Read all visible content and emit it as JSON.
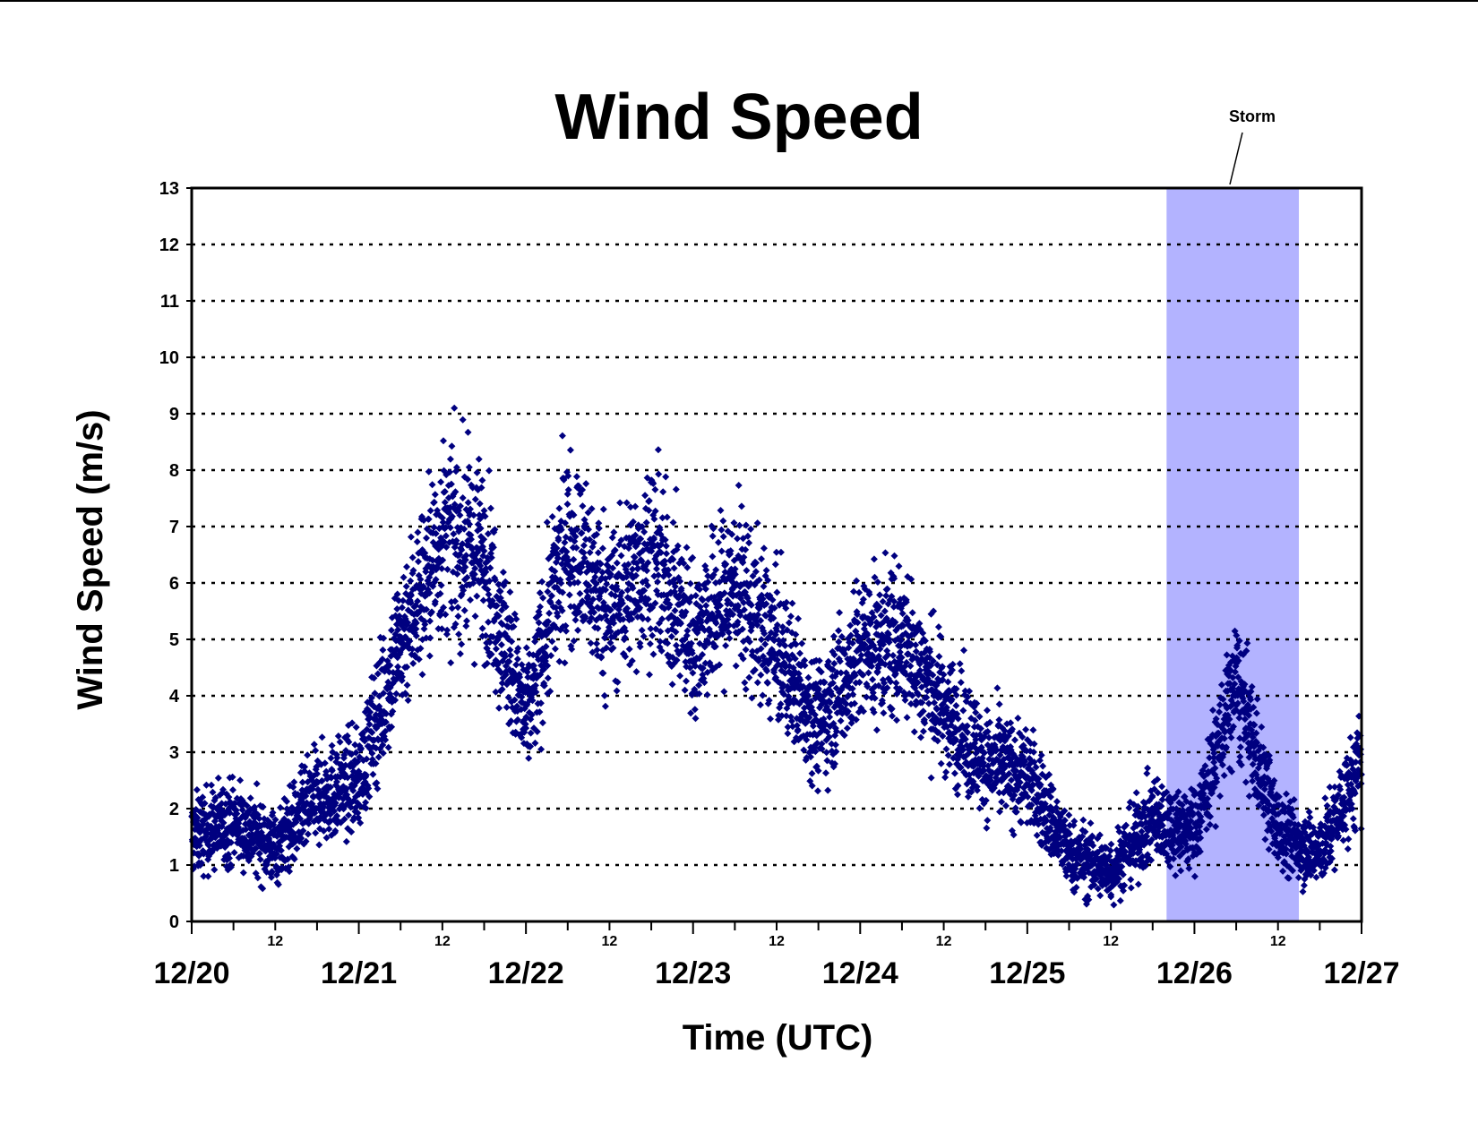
{
  "chart_data": {
    "type": "scatter",
    "title": "Wind Speed",
    "xlabel": "Time (UTC)",
    "ylabel": "Wind Speed (m/s)",
    "x_axis": "time (days)",
    "xlim": [
      "12/20",
      "12/27"
    ],
    "ylim": [
      0,
      13
    ],
    "y_ticks": [
      "0",
      "1",
      "2",
      "3",
      "4",
      "5",
      "6",
      "7",
      "8",
      "9",
      "10",
      "11",
      "12",
      "13"
    ],
    "x_major_ticks": [
      "12/20",
      "12/21",
      "12/22",
      "12/23",
      "12/24",
      "12/25",
      "12/26",
      "12/27"
    ],
    "x_minor_label": "12",
    "grid": "horizontal dotted",
    "marker": "diamond",
    "colors": {
      "points": "#000080",
      "storm_band": "#b3b3ff",
      "grid": "#000000"
    },
    "annotation": {
      "text": "Storm",
      "x_start": "12/25 20:00",
      "x_end": "12/26 15:00"
    },
    "series": [
      {
        "values_note": "approximate daily trend read from the scatter cloud",
        "x": [
          "12/20 00:00",
          "12/20 06:00",
          "12/20 12:00",
          "12/20 18:00",
          "12/21 00:00",
          "12/21 06:00",
          "12/21 12:00",
          "12/21 18:00",
          "12/22 00:00",
          "12/22 06:00",
          "12/22 12:00",
          "12/22 18:00",
          "12/23 00:00",
          "12/23 06:00",
          "12/23 12:00",
          "12/23 18:00",
          "12/24 00:00",
          "12/24 06:00",
          "12/24 12:00",
          "12/24 18:00",
          "12/25 00:00",
          "12/25 06:00",
          "12/25 12:00",
          "12/25 18:00",
          "12/26 00:00",
          "12/26 06:00",
          "12/26 12:00",
          "12/26 18:00",
          "12/27 00:00"
        ],
        "y": [
          1.5,
          1.8,
          1.3,
          2.2,
          2.5,
          5.0,
          6.8,
          6.5,
          3.5,
          6.8,
          5.5,
          6.5,
          5.0,
          6.0,
          4.8,
          3.5,
          4.8,
          5.0,
          3.8,
          2.8,
          2.6,
          1.2,
          0.9,
          1.8,
          1.6,
          4.2,
          1.6,
          1.2,
          2.8
        ]
      }
    ]
  }
}
